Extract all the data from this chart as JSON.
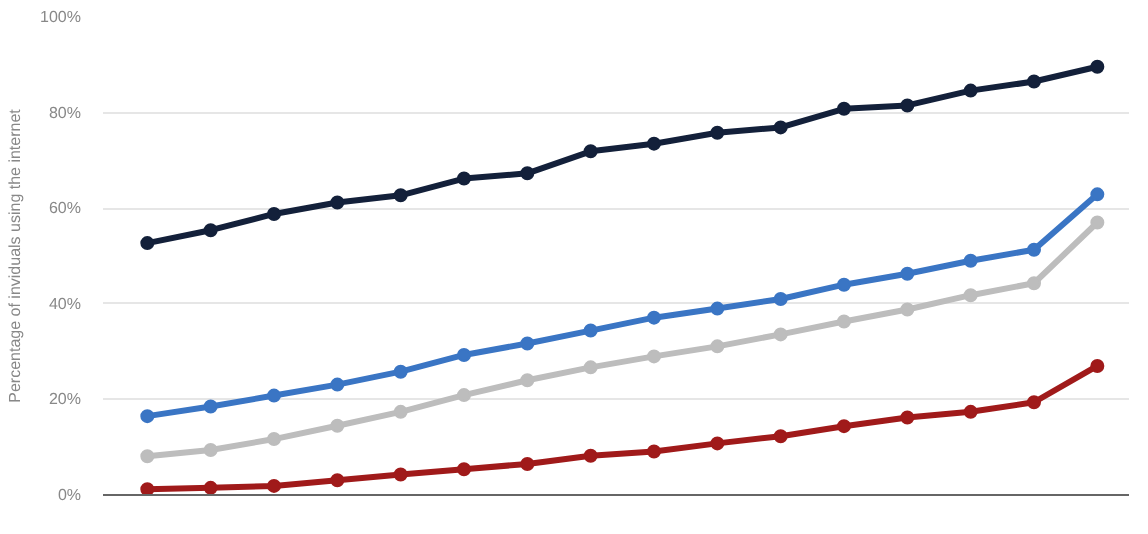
{
  "chart_data": {
    "type": "line",
    "ylabel": "Percentage of inviduals using the internet",
    "categories": [
      null,
      null,
      null,
      null,
      null,
      null,
      null,
      null,
      null,
      null,
      null,
      null,
      null,
      null,
      null,
      null
    ],
    "series": [
      {
        "color": "#13203a",
        "values": [
          52.7,
          55.4,
          58.8,
          61.2,
          62.7,
          66.2,
          67.3,
          71.9,
          73.5,
          75.8,
          76.9,
          80.8,
          81.5,
          84.6,
          86.5,
          89.6
        ]
      },
      {
        "color": "#3a75c4",
        "values": [
          16.5,
          18.5,
          20.8,
          23.1,
          25.8,
          29.3,
          31.7,
          34.4,
          37.1,
          39,
          41,
          44,
          46.3,
          49,
          51.3,
          62.9
        ]
      },
      {
        "color": "#bdbdbd",
        "values": [
          8.1,
          9.4,
          11.7,
          14.5,
          17.4,
          20.9,
          24,
          26.7,
          29,
          31.1,
          33.6,
          36.3,
          38.8,
          41.8,
          44.3,
          57
        ]
      },
      {
        "color": "#a01a1a",
        "values": [
          1.2,
          1.5,
          1.9,
          3.1,
          4.3,
          5.4,
          6.5,
          8.2,
          9.1,
          10.8,
          12.3,
          14.4,
          16.2,
          17.4,
          19.4,
          27
        ]
      }
    ],
    "yticks": [
      {
        "value": 0,
        "label": "0%"
      },
      {
        "value": 20,
        "label": "20%"
      },
      {
        "value": 40,
        "label": "40%"
      },
      {
        "value": 60,
        "label": "60%"
      },
      {
        "value": 80,
        "label": "80%"
      },
      {
        "value": 100,
        "label": "100%"
      }
    ],
    "ylim": [
      0,
      100
    ],
    "grid": "y",
    "marker": "circle",
    "line_style": "solid"
  }
}
